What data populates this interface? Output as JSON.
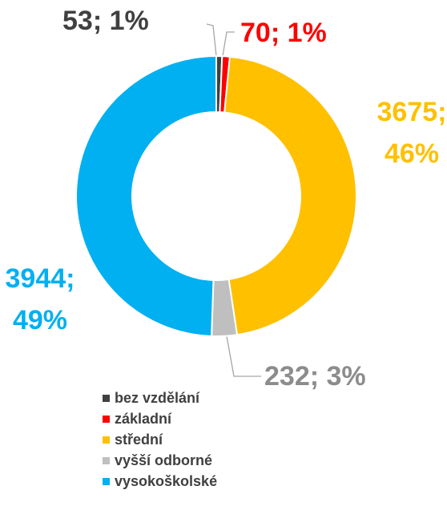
{
  "chart_data": {
    "type": "donut",
    "categories": [
      "bez vzdělání",
      "základní",
      "střední",
      "vyšší odborné",
      "vysokoškolské"
    ],
    "values": [
      53,
      70,
      3675,
      232,
      3944
    ],
    "value_labels": [
      "53; 1%",
      "70; 1%",
      "3675; 46%",
      "232; 3%",
      "3944; 49%"
    ],
    "colors": [
      "#404040",
      "#ff0000",
      "#ffc000",
      "#bfbfbf",
      "#00b0f0"
    ],
    "label_colors": [
      "#404040",
      "#ff0000",
      "#ffc000",
      "#8c8c8c",
      "#00b0f0"
    ],
    "legend": "bottom-left"
  }
}
